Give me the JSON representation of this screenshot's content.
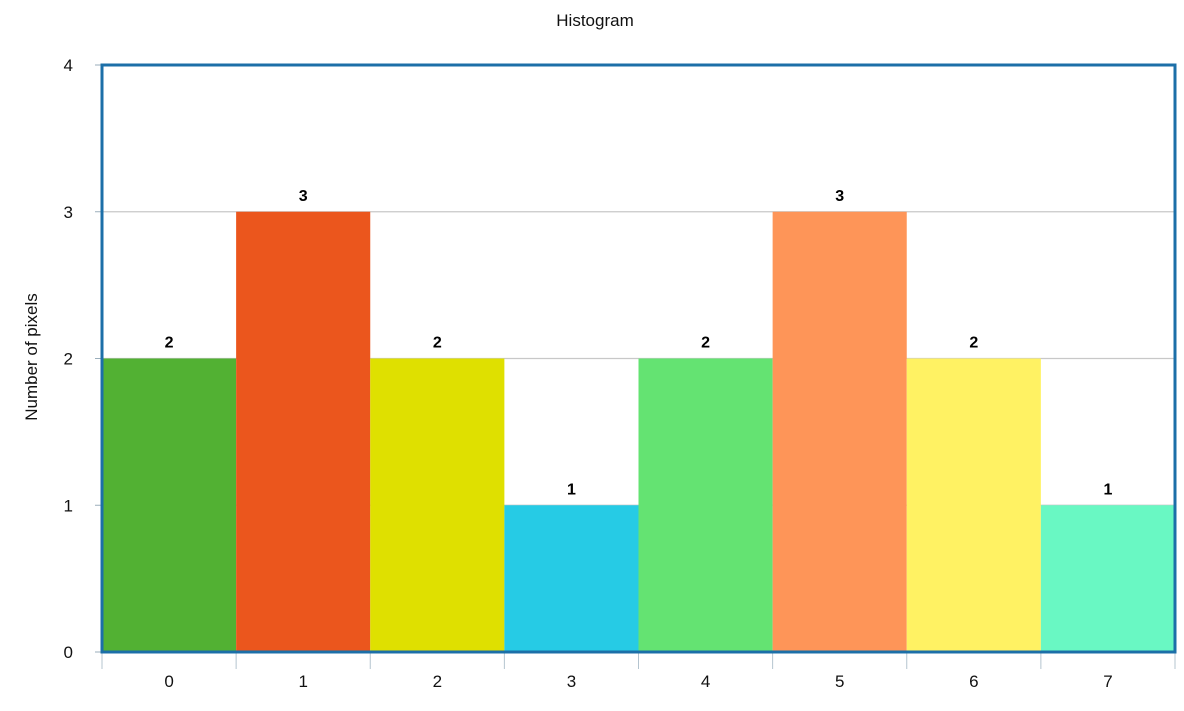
{
  "chart_data": {
    "type": "bar",
    "title": "Histogram",
    "xlabel": "",
    "ylabel": "Number of pixels",
    "categories": [
      "0",
      "1",
      "2",
      "3",
      "4",
      "5",
      "6",
      "7"
    ],
    "values": [
      2,
      3,
      2,
      1,
      2,
      3,
      2,
      1
    ],
    "colors": [
      "#52b133",
      "#eb561d",
      "#dfe000",
      "#26cbe5",
      "#64e372",
      "#fe9558",
      "#fff263",
      "#69f8c3"
    ],
    "ylim": [
      0,
      4
    ],
    "yticks": [
      "0",
      "1",
      "2",
      "3",
      "4"
    ],
    "grid": true,
    "legend": "none",
    "frame_color": "#1c6fa8",
    "data_labels": true
  }
}
